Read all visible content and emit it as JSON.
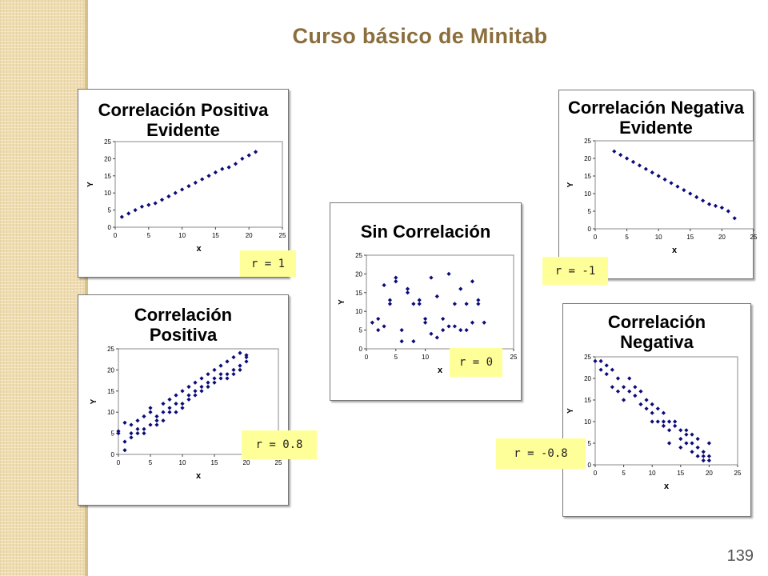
{
  "slide": {
    "title": "Curso básico de Minitab",
    "page_number": "139"
  },
  "colors": {
    "marker": "#0b0b7a",
    "title": "#8a6e3c",
    "label_bg": "#ffff99"
  },
  "chart_data": [
    {
      "id": "pos-evidente",
      "type": "scatter",
      "title": "Correlación Positiva\nEvidente",
      "xlabel": "x",
      "ylabel": "Y",
      "xlim": [
        0,
        25
      ],
      "ylim": [
        0,
        25
      ],
      "xticks": [
        0,
        5,
        10,
        15,
        20,
        25
      ],
      "yticks": [
        0,
        5,
        10,
        15,
        20,
        25
      ],
      "grid": false,
      "r_label": "r = 1",
      "points": [
        [
          1,
          3
        ],
        [
          2,
          4
        ],
        [
          3,
          5
        ],
        [
          4,
          6
        ],
        [
          5,
          6.5
        ],
        [
          6,
          7
        ],
        [
          7,
          8
        ],
        [
          8,
          9
        ],
        [
          9,
          10
        ],
        [
          10,
          11
        ],
        [
          11,
          12
        ],
        [
          12,
          13
        ],
        [
          13,
          14
        ],
        [
          14,
          15
        ],
        [
          15,
          16
        ],
        [
          16,
          17
        ],
        [
          17,
          17.5
        ],
        [
          18,
          18.5
        ],
        [
          19,
          20
        ],
        [
          20,
          21
        ],
        [
          21,
          22
        ]
      ]
    },
    {
      "id": "neg-evidente",
      "type": "scatter",
      "title": "Correlación Negativa\nEvidente",
      "xlabel": "x",
      "ylabel": "Y",
      "xlim": [
        0,
        25
      ],
      "ylim": [
        0,
        25
      ],
      "xticks": [
        0,
        5,
        10,
        15,
        20,
        25
      ],
      "yticks": [
        0,
        5,
        10,
        15,
        20,
        25
      ],
      "grid": false,
      "r_label": "r = -1",
      "points": [
        [
          3,
          22
        ],
        [
          4,
          21
        ],
        [
          5,
          20
        ],
        [
          6,
          19
        ],
        [
          7,
          18
        ],
        [
          8,
          17
        ],
        [
          9,
          16
        ],
        [
          10,
          15
        ],
        [
          11,
          14
        ],
        [
          12,
          13
        ],
        [
          13,
          12
        ],
        [
          14,
          11
        ],
        [
          15,
          10
        ],
        [
          16,
          9
        ],
        [
          17,
          8
        ],
        [
          18,
          7
        ],
        [
          19,
          6.5
        ],
        [
          20,
          6
        ],
        [
          21,
          5
        ],
        [
          22,
          3
        ]
      ]
    },
    {
      "id": "sin-correlacion",
      "type": "scatter",
      "title": "Sin Correlación",
      "xlabel": "x",
      "ylabel": "Y",
      "xlim": [
        0,
        25
      ],
      "ylim": [
        0,
        25
      ],
      "xticks": [
        0,
        5,
        10,
        15,
        20,
        25
      ],
      "yticks": [
        0,
        5,
        10,
        15,
        20,
        25
      ],
      "grid": false,
      "r_label": "r = 0",
      "points": [
        [
          1,
          7
        ],
        [
          2,
          5
        ],
        [
          2,
          8
        ],
        [
          3,
          17
        ],
        [
          3,
          6
        ],
        [
          4,
          13
        ],
        [
          4,
          12
        ],
        [
          5,
          19
        ],
        [
          5,
          18
        ],
        [
          6,
          5
        ],
        [
          6,
          2
        ],
        [
          7,
          16
        ],
        [
          7,
          15
        ],
        [
          8,
          12
        ],
        [
          8,
          2
        ],
        [
          9,
          13
        ],
        [
          9,
          12
        ],
        [
          10,
          8
        ],
        [
          10,
          7
        ],
        [
          11,
          19
        ],
        [
          11,
          4
        ],
        [
          12,
          14
        ],
        [
          12,
          3
        ],
        [
          13,
          8
        ],
        [
          13,
          5
        ],
        [
          14,
          20
        ],
        [
          14,
          6
        ],
        [
          15,
          12
        ],
        [
          15,
          6
        ],
        [
          16,
          16
        ],
        [
          16,
          5
        ],
        [
          17,
          12
        ],
        [
          17,
          5
        ],
        [
          18,
          18
        ],
        [
          18,
          7
        ],
        [
          19,
          13
        ],
        [
          19,
          12
        ],
        [
          20,
          7
        ]
      ]
    },
    {
      "id": "positiva",
      "type": "scatter",
      "title": "Correlación\nPositiva",
      "xlabel": "x",
      "ylabel": "Y",
      "xlim": [
        0,
        25
      ],
      "ylim": [
        0,
        25
      ],
      "xticks": [
        0,
        5,
        10,
        15,
        20,
        25
      ],
      "yticks": [
        0,
        5,
        10,
        15,
        20,
        25
      ],
      "grid": false,
      "r_label": "r = 0.8",
      "points": [
        [
          0,
          5
        ],
        [
          0,
          5.5
        ],
        [
          1,
          3
        ],
        [
          1,
          1
        ],
        [
          1,
          7.5
        ],
        [
          2,
          4
        ],
        [
          2,
          5
        ],
        [
          2,
          7
        ],
        [
          3,
          5
        ],
        [
          3,
          8
        ],
        [
          3,
          6
        ],
        [
          4,
          6
        ],
        [
          4,
          9
        ],
        [
          4,
          5
        ],
        [
          5,
          7
        ],
        [
          5,
          10
        ],
        [
          5,
          11
        ],
        [
          6,
          8
        ],
        [
          6,
          9
        ],
        [
          6,
          7
        ],
        [
          7,
          8
        ],
        [
          7,
          12
        ],
        [
          7,
          10
        ],
        [
          8,
          10
        ],
        [
          8,
          11
        ],
        [
          8,
          13
        ],
        [
          9,
          12
        ],
        [
          9,
          14
        ],
        [
          9,
          10
        ],
        [
          10,
          12
        ],
        [
          10,
          15
        ],
        [
          10,
          11
        ],
        [
          11,
          13
        ],
        [
          11,
          16
        ],
        [
          11,
          14
        ],
        [
          12,
          14
        ],
        [
          12,
          17
        ],
        [
          12,
          15
        ],
        [
          13,
          16
        ],
        [
          13,
          18
        ],
        [
          13,
          15
        ],
        [
          14,
          16
        ],
        [
          14,
          19
        ],
        [
          14,
          17
        ],
        [
          15,
          17
        ],
        [
          15,
          20
        ],
        [
          15,
          18
        ],
        [
          16,
          18
        ],
        [
          16,
          21
        ],
        [
          16,
          19
        ],
        [
          17,
          19
        ],
        [
          17,
          22
        ],
        [
          17,
          18
        ],
        [
          18,
          20
        ],
        [
          18,
          23
        ],
        [
          18,
          19
        ],
        [
          19,
          21
        ],
        [
          19,
          24
        ],
        [
          19,
          20
        ],
        [
          20,
          22
        ],
        [
          20,
          23
        ],
        [
          20,
          23.5
        ]
      ]
    },
    {
      "id": "negativa",
      "type": "scatter",
      "title": "Correlación\nNegativa",
      "xlabel": "x",
      "ylabel": "Y",
      "xlim": [
        0,
        25
      ],
      "ylim": [
        0,
        25
      ],
      "xticks": [
        0,
        5,
        10,
        15,
        20,
        25
      ],
      "yticks": [
        0,
        5,
        10,
        15,
        20,
        25
      ],
      "grid": false,
      "r_label": "r = -0.8",
      "points": [
        [
          0,
          24
        ],
        [
          1,
          24
        ],
        [
          1,
          22
        ],
        [
          2,
          23
        ],
        [
          2,
          21
        ],
        [
          3,
          22
        ],
        [
          3,
          18
        ],
        [
          4,
          20
        ],
        [
          4,
          17
        ],
        [
          5,
          18
        ],
        [
          5,
          15
        ],
        [
          6,
          20
        ],
        [
          6,
          17
        ],
        [
          7,
          16
        ],
        [
          7,
          18
        ],
        [
          8,
          17
        ],
        [
          8,
          14
        ],
        [
          9,
          15
        ],
        [
          9,
          13
        ],
        [
          10,
          14
        ],
        [
          10,
          12
        ],
        [
          10,
          10
        ],
        [
          11,
          13
        ],
        [
          11,
          10
        ],
        [
          12,
          12
        ],
        [
          12,
          9
        ],
        [
          12,
          10
        ],
        [
          13,
          10
        ],
        [
          13,
          8
        ],
        [
          13,
          5
        ],
        [
          14,
          9
        ],
        [
          14,
          10
        ],
        [
          15,
          8
        ],
        [
          15,
          6
        ],
        [
          15,
          4
        ],
        [
          16,
          7
        ],
        [
          16,
          5
        ],
        [
          16,
          8
        ],
        [
          17,
          5
        ],
        [
          17,
          3
        ],
        [
          17,
          7
        ],
        [
          18,
          4
        ],
        [
          18,
          2
        ],
        [
          18,
          6
        ],
        [
          19,
          3
        ],
        [
          19,
          1
        ],
        [
          19,
          2
        ],
        [
          20,
          2
        ],
        [
          20,
          1
        ],
        [
          20,
          5
        ]
      ]
    }
  ]
}
